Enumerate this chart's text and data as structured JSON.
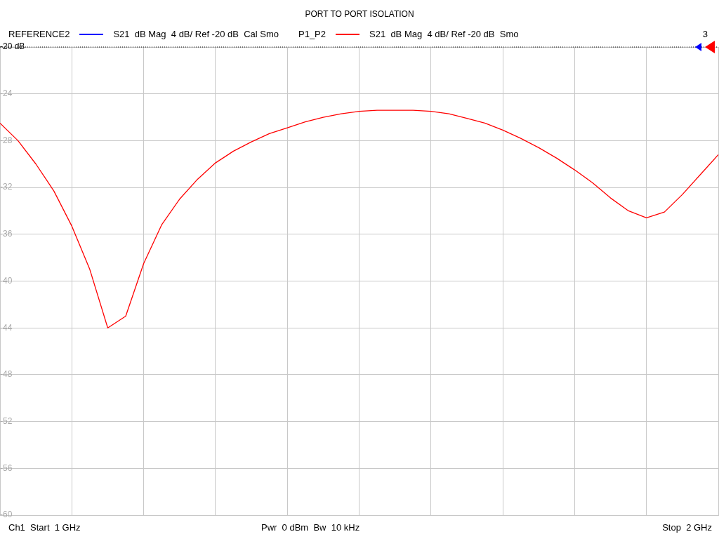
{
  "chart_data": {
    "type": "line",
    "title": "PORT TO PORT ISOLATION",
    "categories": [
      null,
      null,
      null,
      null,
      null,
      null,
      null,
      null,
      null,
      null,
      null,
      null,
      null,
      null,
      null,
      null,
      null,
      null,
      null,
      null,
      null,
      null,
      null,
      null,
      null,
      null,
      null,
      null,
      null,
      null,
      null,
      null,
      null,
      null,
      null,
      null,
      null,
      null,
      null,
      null,
      null
    ],
    "series": [
      {
        "name": "REFERENCE2",
        "color": "#0000ff",
        "values": [
          null,
          null,
          null,
          null,
          null,
          null,
          null,
          null,
          null,
          null,
          null,
          null,
          null,
          null,
          null,
          null,
          null,
          null,
          null,
          null,
          null,
          null,
          null,
          null,
          null,
          null,
          null,
          null,
          null,
          null,
          null,
          null,
          null,
          null,
          null,
          null,
          null,
          null,
          null,
          null,
          null
        ]
      },
      {
        "name": "P1_P2",
        "color": "#ff0000",
        "values": [
          -26.5,
          -28.0,
          -30.0,
          -32.3,
          -35.3,
          -39.0,
          -44.0,
          -43.0,
          -38.5,
          -35.2,
          -33.0,
          -31.3,
          -29.9,
          -28.9,
          -28.1,
          -27.4,
          -26.9,
          -26.4,
          -26.0,
          -25.7,
          -25.5,
          -25.4,
          -25.4,
          -25.4,
          -25.5,
          -25.7,
          -26.1,
          -26.5,
          -27.1,
          -27.8,
          -28.6,
          -29.5,
          -30.5,
          -31.6,
          -32.9,
          -34.0,
          -34.6,
          -34.1,
          -32.6,
          -30.9,
          -29.2
        ]
      }
    ],
    "ylim": [
      -60,
      -20
    ],
    "yticks": [
      -60,
      -56,
      -52,
      -48,
      -44,
      -40,
      -36,
      -32,
      -28,
      -24,
      {
        "value": -20,
        "label": "-20 dB"
      }
    ],
    "tick_labels": "y",
    "grid": true,
    "legend": "top",
    "marker": "none",
    "line_style": "solid",
    "ref_lines": [
      {
        "axis": "y",
        "value": -20,
        "color": "#000000",
        "line_style": "dotted"
      }
    ],
    "annotations": [
      "S21  dB Mag  4 dB/ Ref -20 dB  Cal Smo",
      "S21  dB Mag  4 dB/ Ref -20 dB  Smo",
      "3",
      "Ch1  Start  1 GHz",
      "Pwr  0 dBm  Bw  10 kHz",
      "Stop  2 GHz"
    ]
  }
}
